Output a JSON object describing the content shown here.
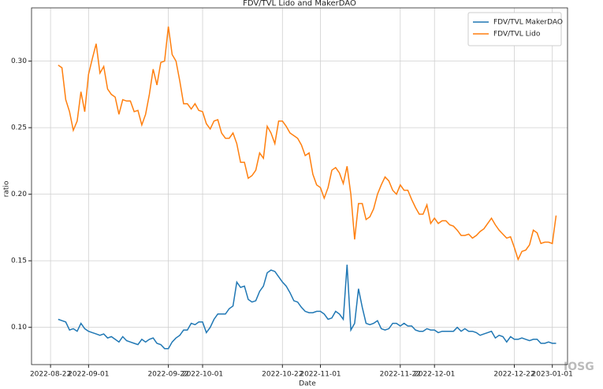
{
  "chart_data": {
    "type": "line",
    "title": "FDV/TVL Lido and MakerDAO",
    "xlabel": "Date",
    "ylabel": "ratio",
    "watermark": "IOSG",
    "x": [
      "2022-08-24",
      "2022-08-25",
      "2022-08-26",
      "2022-08-27",
      "2022-08-28",
      "2022-08-29",
      "2022-08-30",
      "2022-08-31",
      "2022-09-01",
      "2022-09-02",
      "2022-09-03",
      "2022-09-04",
      "2022-09-05",
      "2022-09-06",
      "2022-09-07",
      "2022-09-08",
      "2022-09-09",
      "2022-09-10",
      "2022-09-11",
      "2022-09-12",
      "2022-09-13",
      "2022-09-14",
      "2022-09-15",
      "2022-09-16",
      "2022-09-17",
      "2022-09-18",
      "2022-09-19",
      "2022-09-20",
      "2022-09-21",
      "2022-09-22",
      "2022-09-23",
      "2022-09-24",
      "2022-09-25",
      "2022-09-26",
      "2022-09-27",
      "2022-09-28",
      "2022-09-29",
      "2022-09-30",
      "2022-10-01",
      "2022-10-02",
      "2022-10-03",
      "2022-10-04",
      "2022-10-05",
      "2022-10-06",
      "2022-10-07",
      "2022-10-08",
      "2022-10-09",
      "2022-10-10",
      "2022-10-11",
      "2022-10-12",
      "2022-10-13",
      "2022-10-14",
      "2022-10-15",
      "2022-10-16",
      "2022-10-17",
      "2022-10-18",
      "2022-10-19",
      "2022-10-20",
      "2022-10-21",
      "2022-10-22",
      "2022-10-23",
      "2022-10-24",
      "2022-10-25",
      "2022-10-26",
      "2022-10-27",
      "2022-10-28",
      "2022-10-29",
      "2022-10-30",
      "2022-10-31",
      "2022-11-01",
      "2022-11-02",
      "2022-11-03",
      "2022-11-04",
      "2022-11-05",
      "2022-11-06",
      "2022-11-07",
      "2022-11-08",
      "2022-11-09",
      "2022-11-10",
      "2022-11-11",
      "2022-11-12",
      "2022-11-13",
      "2022-11-14",
      "2022-11-15",
      "2022-11-16",
      "2022-11-17",
      "2022-11-18",
      "2022-11-19",
      "2022-11-20",
      "2022-11-21",
      "2022-11-22",
      "2022-11-23",
      "2022-11-24",
      "2022-11-25",
      "2022-11-26",
      "2022-11-27",
      "2022-11-28",
      "2022-11-29",
      "2022-11-30",
      "2022-12-01",
      "2022-12-02",
      "2022-12-03",
      "2022-12-04",
      "2022-12-05",
      "2022-12-06",
      "2022-12-07",
      "2022-12-08",
      "2022-12-09",
      "2022-12-10",
      "2022-12-11",
      "2022-12-12",
      "2022-12-13",
      "2022-12-14",
      "2022-12-15",
      "2022-12-16",
      "2022-12-17",
      "2022-12-18",
      "2022-12-19",
      "2022-12-20",
      "2022-12-21",
      "2022-12-22",
      "2022-12-23",
      "2022-12-24",
      "2022-12-25",
      "2022-12-26",
      "2022-12-27",
      "2022-12-28",
      "2022-12-29",
      "2022-12-30",
      "2022-12-31",
      "2023-01-01",
      "2023-01-02"
    ],
    "series": [
      {
        "name": "FDV/TVL MakerDAO",
        "color": "#1f77b4",
        "values": [
          0.106,
          0.105,
          0.104,
          0.098,
          0.099,
          0.097,
          0.103,
          0.099,
          0.097,
          0.096,
          0.095,
          0.094,
          0.095,
          0.092,
          0.093,
          0.091,
          0.089,
          0.093,
          0.09,
          0.089,
          0.088,
          0.087,
          0.091,
          0.089,
          0.091,
          0.092,
          0.088,
          0.087,
          0.084,
          0.084,
          0.089,
          0.092,
          0.094,
          0.098,
          0.098,
          0.103,
          0.102,
          0.104,
          0.104,
          0.096,
          0.1,
          0.106,
          0.11,
          0.11,
          0.11,
          0.114,
          0.116,
          0.134,
          0.13,
          0.131,
          0.121,
          0.119,
          0.12,
          0.127,
          0.131,
          0.141,
          0.143,
          0.142,
          0.138,
          0.134,
          0.131,
          0.126,
          0.12,
          0.119,
          0.115,
          0.112,
          0.111,
          0.111,
          0.112,
          0.112,
          0.11,
          0.106,
          0.107,
          0.112,
          0.11,
          0.106,
          0.147,
          0.098,
          0.103,
          0.129,
          0.115,
          0.103,
          0.102,
          0.103,
          0.105,
          0.099,
          0.098,
          0.099,
          0.103,
          0.103,
          0.101,
          0.103,
          0.101,
          0.101,
          0.098,
          0.097,
          0.097,
          0.099,
          0.098,
          0.098,
          0.096,
          0.097,
          0.097,
          0.097,
          0.097,
          0.1,
          0.097,
          0.099,
          0.097,
          0.097,
          0.096,
          0.094,
          0.095,
          0.096,
          0.097,
          0.092,
          0.094,
          0.093,
          0.089,
          0.093,
          0.091,
          0.091,
          0.092,
          0.091,
          0.09,
          0.091,
          0.091,
          0.088,
          0.088,
          0.089,
          0.088,
          0.088
        ]
      },
      {
        "name": "FDV/TVL Lido",
        "color": "#ff7f0e",
        "values": [
          0.297,
          0.295,
          0.271,
          0.262,
          0.248,
          0.255,
          0.277,
          0.262,
          0.29,
          0.302,
          0.313,
          0.291,
          0.296,
          0.279,
          0.275,
          0.273,
          0.26,
          0.271,
          0.27,
          0.27,
          0.262,
          0.263,
          0.252,
          0.26,
          0.275,
          0.294,
          0.282,
          0.299,
          0.3,
          0.326,
          0.305,
          0.3,
          0.285,
          0.268,
          0.268,
          0.264,
          0.268,
          0.263,
          0.262,
          0.253,
          0.249,
          0.255,
          0.256,
          0.246,
          0.242,
          0.242,
          0.246,
          0.238,
          0.224,
          0.224,
          0.212,
          0.214,
          0.218,
          0.231,
          0.227,
          0.251,
          0.246,
          0.238,
          0.255,
          0.255,
          0.251,
          0.246,
          0.244,
          0.242,
          0.237,
          0.229,
          0.231,
          0.215,
          0.207,
          0.205,
          0.197,
          0.205,
          0.218,
          0.22,
          0.216,
          0.208,
          0.221,
          0.2,
          0.166,
          0.193,
          0.193,
          0.181,
          0.183,
          0.189,
          0.2,
          0.207,
          0.213,
          0.21,
          0.203,
          0.2,
          0.207,
          0.203,
          0.203,
          0.196,
          0.19,
          0.185,
          0.185,
          0.192,
          0.178,
          0.182,
          0.178,
          0.18,
          0.18,
          0.177,
          0.176,
          0.173,
          0.169,
          0.169,
          0.17,
          0.167,
          0.169,
          0.172,
          0.174,
          0.178,
          0.182,
          0.177,
          0.173,
          0.17,
          0.167,
          0.168,
          0.16,
          0.151,
          0.157,
          0.158,
          0.162,
          0.173,
          0.171,
          0.163,
          0.164,
          0.164,
          0.163,
          0.184
        ]
      }
    ],
    "xlim": [
      "2022-08-17",
      "2023-01-05"
    ],
    "xticks": [
      "2022-08-22",
      "2022-09-01",
      "2022-09-22",
      "2022-10-01",
      "2022-10-22",
      "2022-11-01",
      "2022-11-22",
      "2022-12-01",
      "2022-12-22",
      "2023-01-01"
    ],
    "ylim": [
      0.072,
      0.34
    ],
    "yticks": [
      {
        "value": 0.1,
        "label": "0.10"
      },
      {
        "value": 0.15,
        "label": "0.15"
      },
      {
        "value": 0.2,
        "label": "0.20"
      },
      {
        "value": 0.25,
        "label": "0.25"
      },
      {
        "value": 0.3,
        "label": "0.30"
      }
    ],
    "grid": true,
    "legend": "upper right"
  }
}
